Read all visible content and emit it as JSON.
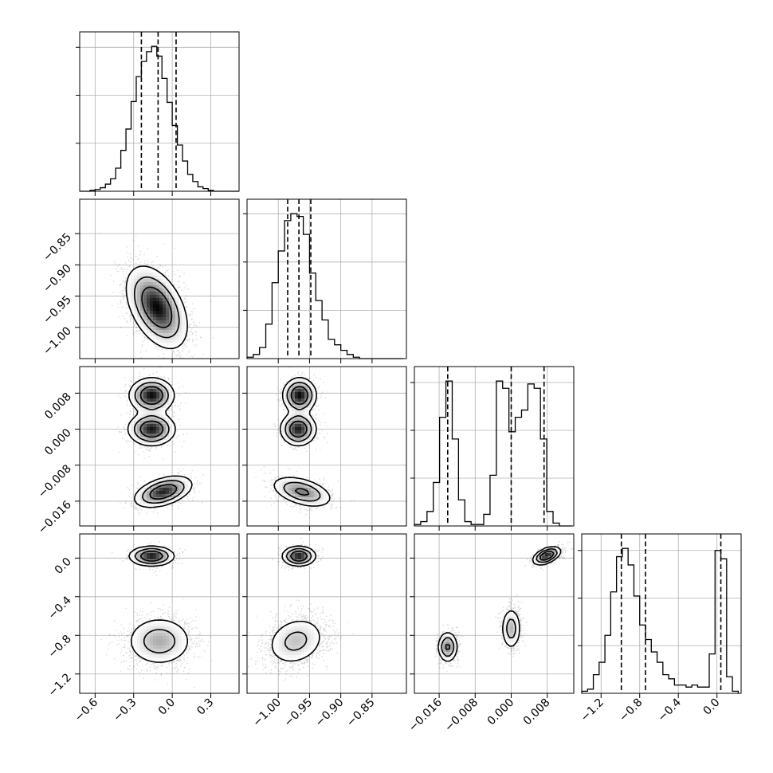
{
  "chart_data": {
    "type": "corner",
    "grid": true,
    "parameters": [
      {
        "range": [
          -0.72,
          0.52
        ],
        "ticks": [
          -0.6,
          -0.3,
          0.0,
          0.3
        ],
        "tick_labels": [
          "−0.6",
          "−0.3",
          "0.0",
          "0.3"
        ],
        "quantiles": [
          -0.24,
          -0.11,
          0.03
        ],
        "histogram": {
          "edges": [
            -0.72,
            -0.68,
            -0.64,
            -0.6,
            -0.56,
            -0.52,
            -0.48,
            -0.44,
            -0.4,
            -0.36,
            -0.32,
            -0.28,
            -0.24,
            -0.2,
            -0.16,
            -0.12,
            -0.08,
            -0.04,
            0.0,
            0.04,
            0.08,
            0.12,
            0.16,
            0.2,
            0.24,
            0.28,
            0.32,
            0.36,
            0.4,
            0.44,
            0.48,
            0.52
          ],
          "counts": [
            0,
            0,
            1,
            2,
            4,
            8,
            14,
            26,
            46,
            70,
            101,
            129,
            146,
            157,
            163,
            152,
            127,
            100,
            74,
            52,
            34,
            19,
            11,
            5,
            3,
            1,
            0,
            0,
            0,
            0,
            0
          ]
        }
      },
      {
        "range": [
          -1.05,
          -0.795
        ],
        "ticks": [
          -1.0,
          -0.95,
          -0.9,
          -0.85
        ],
        "tick_labels": [
          "−1.00",
          "−0.95",
          "−0.90",
          "−0.85"
        ],
        "quantiles": [
          -0.985,
          -0.967,
          -0.948
        ],
        "histogram": {
          "edges": [
            -1.05,
            -1.04,
            -1.03,
            -1.02,
            -1.01,
            -1.0,
            -0.99,
            -0.98,
            -0.97,
            -0.96,
            -0.95,
            -0.94,
            -0.93,
            -0.92,
            -0.91,
            -0.9,
            -0.89,
            -0.88,
            -0.87,
            -0.86,
            -0.85,
            -0.84,
            -0.83,
            -0.82,
            -0.81,
            -0.8
          ],
          "counts": [
            1,
            3,
            8,
            25,
            55,
            78,
            100,
            105,
            103,
            90,
            62,
            42,
            28,
            14,
            10,
            6,
            3,
            1,
            0,
            0,
            0,
            0,
            0,
            0,
            0
          ]
        }
      },
      {
        "range": [
          -0.0215,
          0.0139
        ],
        "ticks": [
          -0.016,
          -0.008,
          0.0,
          0.008
        ],
        "tick_labels": [
          "−0.016",
          "−0.008",
          "0.000",
          "0.008"
        ],
        "quantiles": [
          -0.0141,
          0.0,
          0.0073
        ],
        "histogram": {
          "edges": [
            -0.0215,
            -0.0201,
            -0.0187,
            -0.0173,
            -0.0159,
            -0.0145,
            -0.0131,
            -0.0117,
            -0.0103,
            -0.0089,
            -0.0075,
            -0.0061,
            -0.0047,
            -0.0033,
            -0.0019,
            -0.0005,
            0.0009,
            0.0023,
            0.0037,
            0.0051,
            0.0065,
            0.0079,
            0.0093,
            0.0107,
            0.0121,
            0.0135
          ],
          "counts": [
            1,
            3,
            10,
            30,
            75,
            100,
            60,
            18,
            3,
            1,
            1,
            8,
            35,
            100,
            95,
            65,
            75,
            80,
            98,
            95,
            60,
            10,
            2,
            0,
            0
          ]
        }
      },
      {
        "range": [
          -1.4,
          0.25
        ],
        "ticks": [
          -1.2,
          -0.8,
          -0.4,
          0.0
        ],
        "tick_labels": [
          "−1.2",
          "−0.8",
          "−0.4",
          "0.0"
        ],
        "quantiles": [
          -0.99,
          -0.74,
          0.04
        ],
        "histogram": {
          "edges": [
            -1.4,
            -1.34,
            -1.28,
            -1.22,
            -1.16,
            -1.1,
            -1.04,
            -0.98,
            -0.92,
            -0.86,
            -0.8,
            -0.74,
            -0.68,
            -0.62,
            -0.56,
            -0.5,
            -0.44,
            -0.38,
            -0.32,
            -0.26,
            -0.2,
            -0.14,
            -0.08,
            -0.02,
            0.04,
            0.1,
            0.16,
            0.22
          ],
          "counts": [
            1,
            2,
            9,
            15,
            28,
            49,
            66,
            70,
            62,
            47,
            33,
            26,
            20,
            15,
            9,
            7,
            4,
            4,
            3,
            4,
            3,
            3,
            19,
            69,
            65,
            8,
            1
          ]
        }
      }
    ],
    "pairs": [
      {
        "row": 1,
        "col": 0,
        "components": [
          {
            "mean": [
              -0.12,
              -0.968
            ],
            "sd": [
              0.115,
              0.032
            ],
            "rho": -0.45,
            "weight": 1.0
          }
        ]
      },
      {
        "row": 2,
        "col": 0,
        "components": [
          {
            "mean": [
              -0.16,
              0.0075
            ],
            "sd": [
              0.085,
              0.0019
            ],
            "rho": 0.0,
            "weight": 0.34
          },
          {
            "mean": [
              -0.16,
              0.0
            ],
            "sd": [
              0.09,
              0.0018
            ],
            "rho": 0.0,
            "weight": 0.33
          },
          {
            "mean": [
              -0.07,
              -0.0139
            ],
            "sd": [
              0.11,
              0.0017
            ],
            "rho": 0.45,
            "weight": 0.33
          }
        ]
      },
      {
        "row": 2,
        "col": 1,
        "components": [
          {
            "mean": [
              -0.966,
              0.0075
            ],
            "sd": [
              0.013,
              0.0019
            ],
            "rho": 0.0,
            "weight": 0.34
          },
          {
            "mean": [
              -0.968,
              0.0
            ],
            "sd": [
              0.014,
              0.0018
            ],
            "rho": 0.0,
            "weight": 0.33
          },
          {
            "mean": [
              -0.962,
              -0.0139
            ],
            "sd": [
              0.024,
              0.0017
            ],
            "rho": -0.45,
            "weight": 0.33
          }
        ]
      },
      {
        "row": 3,
        "col": 0,
        "components": [
          {
            "mean": [
              -0.16,
              0.02
            ],
            "sd": [
              0.085,
              0.05
            ],
            "rho": 0.0,
            "weight": 0.34
          },
          {
            "mean": [
              -0.1,
              -0.86
            ],
            "sd": [
              0.13,
              0.13
            ],
            "rho": 0.0,
            "weight": 0.66
          }
        ]
      },
      {
        "row": 3,
        "col": 1,
        "components": [
          {
            "mean": [
              -0.967,
              0.02
            ],
            "sd": [
              0.013,
              0.05
            ],
            "rho": 0.0,
            "weight": 0.34
          },
          {
            "mean": [
              -0.972,
              -0.86
            ],
            "sd": [
              0.024,
              0.13
            ],
            "rho": 0.2,
            "weight": 0.66
          }
        ]
      },
      {
        "row": 3,
        "col": 2,
        "components": [
          {
            "mean": [
              -0.0141,
              -0.92
            ],
            "sd": [
              0.0011,
              0.08
            ],
            "rho": 0.0,
            "weight": 0.33
          },
          {
            "mean": [
              0.0,
              -0.73
            ],
            "sd": [
              0.0011,
              0.11
            ],
            "rho": 0.0,
            "weight": 0.33
          },
          {
            "mean": [
              0.0079,
              0.025
            ],
            "sd": [
              0.0015,
              0.045
            ],
            "rho": 0.5,
            "weight": 0.34
          }
        ]
      }
    ]
  }
}
